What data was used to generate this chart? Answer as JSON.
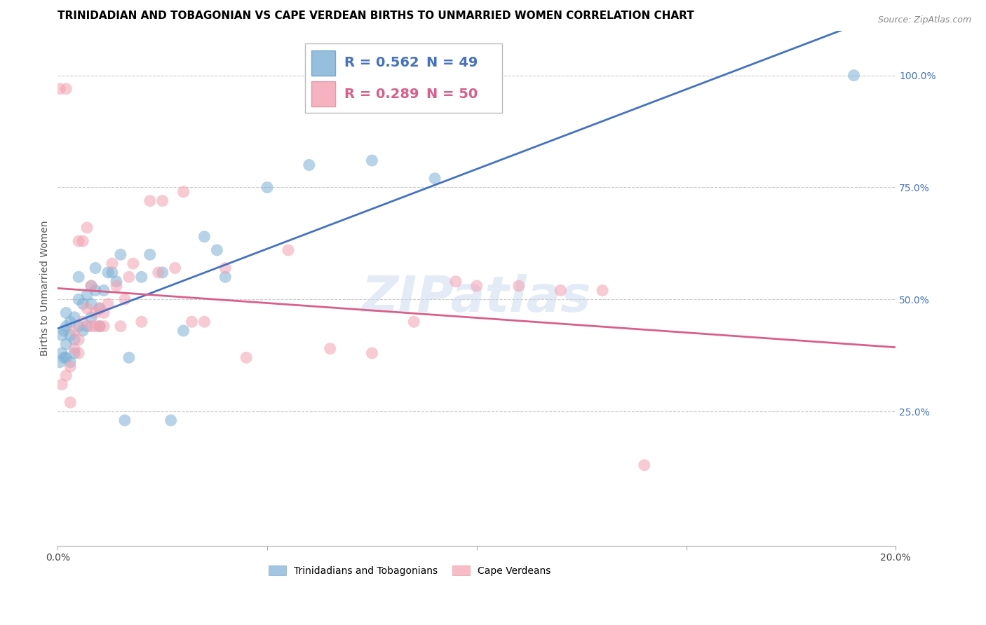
{
  "title": "TRINIDADIAN AND TOBAGONIAN VS CAPE VERDEAN BIRTHS TO UNMARRIED WOMEN CORRELATION CHART",
  "source": "Source: ZipAtlas.com",
  "ylabel": "Births to Unmarried Women",
  "xlim": [
    0.0,
    0.2
  ],
  "ylim": [
    -0.05,
    1.1
  ],
  "yticks_right": [
    0.25,
    0.5,
    0.75,
    1.0
  ],
  "ytick_right_labels": [
    "25.0%",
    "50.0%",
    "75.0%",
    "100.0%"
  ],
  "xticks": [
    0.0,
    0.05,
    0.1,
    0.15,
    0.2
  ],
  "xtick_labels": [
    "0.0%",
    "",
    "",
    "",
    "20.0%"
  ],
  "series1_name": "Trinidadians and Tobagonians",
  "series1_color": "#7bafd4",
  "series1_R": 0.562,
  "series1_N": 49,
  "series1_x": [
    0.0005,
    0.001,
    0.001,
    0.0015,
    0.0015,
    0.002,
    0.002,
    0.002,
    0.002,
    0.003,
    0.003,
    0.003,
    0.004,
    0.004,
    0.004,
    0.005,
    0.005,
    0.005,
    0.006,
    0.006,
    0.007,
    0.007,
    0.008,
    0.008,
    0.008,
    0.009,
    0.009,
    0.01,
    0.01,
    0.011,
    0.012,
    0.013,
    0.014,
    0.015,
    0.016,
    0.017,
    0.02,
    0.022,
    0.025,
    0.027,
    0.03,
    0.035,
    0.038,
    0.04,
    0.05,
    0.06,
    0.075,
    0.09,
    0.19
  ],
  "series1_y": [
    0.36,
    0.38,
    0.42,
    0.37,
    0.43,
    0.37,
    0.4,
    0.44,
    0.47,
    0.36,
    0.42,
    0.45,
    0.38,
    0.41,
    0.46,
    0.44,
    0.5,
    0.55,
    0.43,
    0.49,
    0.51,
    0.44,
    0.46,
    0.49,
    0.53,
    0.52,
    0.57,
    0.44,
    0.48,
    0.52,
    0.56,
    0.56,
    0.54,
    0.6,
    0.23,
    0.37,
    0.55,
    0.6,
    0.56,
    0.23,
    0.43,
    0.64,
    0.61,
    0.55,
    0.75,
    0.8,
    0.81,
    0.77,
    1.0
  ],
  "series2_name": "Cape Verdeans",
  "series2_color": "#f4a0b0",
  "series2_R": 0.289,
  "series2_N": 50,
  "series2_x": [
    0.0005,
    0.001,
    0.002,
    0.002,
    0.003,
    0.003,
    0.004,
    0.004,
    0.005,
    0.005,
    0.005,
    0.006,
    0.006,
    0.007,
    0.007,
    0.008,
    0.008,
    0.009,
    0.009,
    0.01,
    0.01,
    0.011,
    0.011,
    0.012,
    0.013,
    0.014,
    0.015,
    0.016,
    0.017,
    0.018,
    0.02,
    0.022,
    0.024,
    0.025,
    0.028,
    0.03,
    0.032,
    0.035,
    0.04,
    0.045,
    0.055,
    0.065,
    0.075,
    0.085,
    0.095,
    0.1,
    0.11,
    0.12,
    0.13,
    0.14
  ],
  "series2_y": [
    0.97,
    0.31,
    0.33,
    0.97,
    0.27,
    0.35,
    0.39,
    0.43,
    0.38,
    0.41,
    0.63,
    0.45,
    0.63,
    0.66,
    0.48,
    0.44,
    0.53,
    0.44,
    0.47,
    0.44,
    0.48,
    0.44,
    0.47,
    0.49,
    0.58,
    0.53,
    0.44,
    0.5,
    0.55,
    0.58,
    0.45,
    0.72,
    0.56,
    0.72,
    0.57,
    0.74,
    0.45,
    0.45,
    0.57,
    0.37,
    0.61,
    0.39,
    0.38,
    0.45,
    0.54,
    0.53,
    0.53,
    0.52,
    0.52,
    0.13
  ],
  "line1_color": "#4472c4",
  "line2_color": "#d95f8a",
  "bg_color": "#ffffff",
  "grid_color": "#cccccc",
  "right_axis_color": "#4472c4",
  "title_fontsize": 11,
  "label_fontsize": 10,
  "tick_fontsize": 10,
  "legend_R1": "R = 0.562",
  "legend_N1": "N = 49",
  "legend_R2": "R = 0.289",
  "legend_N2": "N = 50",
  "watermark": "ZIPatlas",
  "watermark_color": "#c8d8f0"
}
